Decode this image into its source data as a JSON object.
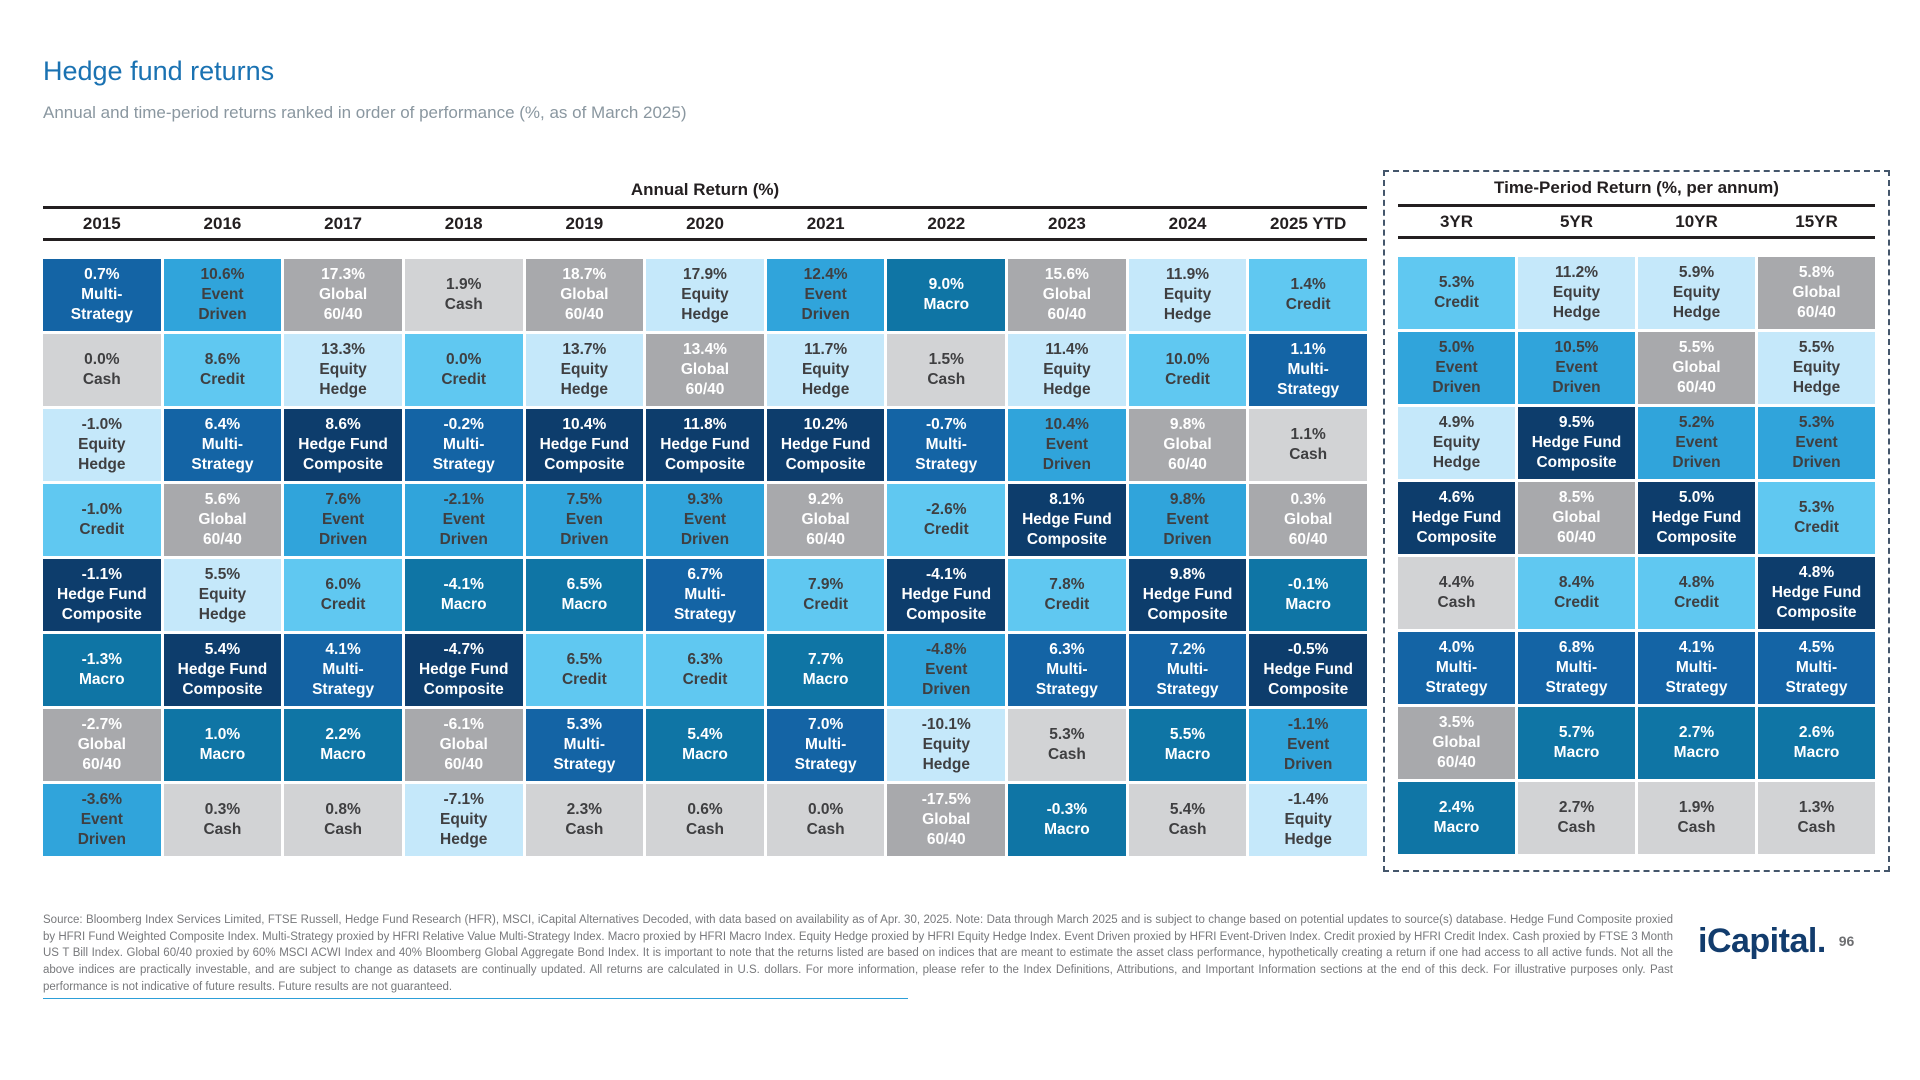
{
  "page": {
    "title": "Hedge fund returns",
    "subtitle": "Annual and time-period returns ranked in order of performance (%, as of March 2025)",
    "footer": "Source: Bloomberg Index Services Limited, FTSE Russell, Hedge Fund Research (HFR), MSCI, iCapital Alternatives Decoded, with data based on availability as of Apr. 30, 2025. Note: Data through March 2025 and is subject to change based on potential updates to source(s) database. Hedge Fund Composite proxied by HFRI Fund Weighted Composite Index. Multi-Strategy proxied by HFRI Relative Value Multi-Strategy Index. Macro proxied by HFRI Macro Index. Equity Hedge proxied by HFRI Equity Hedge Index. Event Driven proxied by HFRI Event-Driven Index. Credit proxied by HFRI Credit Index. Cash proxied by FTSE 3 Month US T Bill Index. Global 60/40 proxied by 60% MSCI ACWI Index and 40% Bloomberg Global Aggregate Bond Index. It is important to note that the returns listed are based on indices that are meant to estimate the asset class performance, hypothetically creating a return if one had access to all active funds. Not all the above indices are practically investable, and are subject to change as datasets are continually updated. All returns are calculated in U.S. dollars. For more information, please refer to the Index Definitions, Attributions, and Important Information sections at the end of this deck. For illustrative purposes only. Past performance is not indicative of future results. Future results are not guaranteed.",
    "logo_text": "iCapital",
    "logo_suffix": ".",
    "page_number": "96"
  },
  "legend": {
    "ms": {
      "name": "Multi-Strategy",
      "display": "Multi-\nStrategy",
      "bg": "#1464A5",
      "fg": "#FFFFFF"
    },
    "hfc": {
      "name": "Hedge Fund Composite",
      "display": "Hedge Fund\nComposite",
      "bg": "#0D3D6C",
      "fg": "#FFFFFF"
    },
    "macro": {
      "name": "Macro",
      "display": "Macro",
      "bg": "#0F75A5",
      "fg": "#FFFFFF"
    },
    "ed": {
      "name": "Event Driven",
      "display": "Event\nDriven",
      "bg": "#30A4DB",
      "fg": "#3F3F41"
    },
    "credit": {
      "name": "Credit",
      "display": "Credit",
      "bg": "#60C8F1",
      "fg": "#3F3F41"
    },
    "eh": {
      "name": "Equity Hedge",
      "display": "Equity\nHedge",
      "bg": "#C5E8FA",
      "fg": "#3F3F41"
    },
    "g6040": {
      "name": "Global 60/40",
      "display": "Global\n60/40",
      "bg": "#A8A9AC",
      "fg": "#FFFFFF"
    },
    "cash": {
      "name": "Cash",
      "display": "Cash",
      "bg": "#D2D3D5",
      "fg": "#3F3F41"
    }
  },
  "chart_data": {
    "type": "table",
    "title": "Hedge fund returns",
    "subtitle": "Annual and time-period returns ranked in order of performance (%, as of March 2025)",
    "sections": [
      {
        "header": "Annual Return (%)",
        "columns": [
          {
            "label": "2015",
            "cells": [
              [
                "0.7%",
                "ms"
              ],
              [
                "0.0%",
                "cash"
              ],
              [
                "-1.0%",
                "eh"
              ],
              [
                "-1.0%",
                "credit"
              ],
              [
                "-1.1%",
                "hfc"
              ],
              [
                "-1.3%",
                "macro"
              ],
              [
                "-2.7%",
                "g6040"
              ],
              [
                "-3.6%",
                "ed"
              ]
            ]
          },
          {
            "label": "2016",
            "cells": [
              [
                "10.6%",
                "ed"
              ],
              [
                "8.6%",
                "credit"
              ],
              [
                "6.4%",
                "ms"
              ],
              [
                "5.6%",
                "g6040"
              ],
              [
                "5.5%",
                "eh"
              ],
              [
                "5.4%",
                "hfc"
              ],
              [
                "1.0%",
                "macro"
              ],
              [
                "0.3%",
                "cash"
              ]
            ]
          },
          {
            "label": "2017",
            "cells": [
              [
                "17.3%",
                "g6040"
              ],
              [
                "13.3%",
                "eh"
              ],
              [
                "8.6%",
                "hfc"
              ],
              [
                "7.6%",
                "ed"
              ],
              [
                "6.0%",
                "credit"
              ],
              [
                "4.1%",
                "ms"
              ],
              [
                "2.2%",
                "macro"
              ],
              [
                "0.8%",
                "cash"
              ]
            ]
          },
          {
            "label": "2018",
            "cells": [
              [
                "1.9%",
                "cash"
              ],
              [
                "0.0%",
                "credit"
              ],
              [
                "-0.2%",
                "ms"
              ],
              [
                "-2.1%",
                "ed"
              ],
              [
                "-4.1%",
                "macro"
              ],
              [
                "-4.7%",
                "hfc"
              ],
              [
                "-6.1%",
                "g6040"
              ],
              [
                "-7.1%",
                "eh"
              ]
            ]
          },
          {
            "label": "2019",
            "cells": [
              [
                "18.7%",
                "g6040"
              ],
              [
                "13.7%",
                "eh"
              ],
              [
                "10.4%",
                "hfc"
              ],
              [
                "7.5%",
                "ed",
                "Even\nDriven"
              ],
              [
                "6.5%",
                "macro"
              ],
              [
                "6.5%",
                "credit"
              ],
              [
                "5.3%",
                "ms"
              ],
              [
                "2.3%",
                "cash"
              ]
            ]
          },
          {
            "label": "2020",
            "cells": [
              [
                "17.9%",
                "eh"
              ],
              [
                "13.4%",
                "g6040"
              ],
              [
                "11.8%",
                "hfc"
              ],
              [
                "9.3%",
                "ed"
              ],
              [
                "6.7%",
                "ms"
              ],
              [
                "6.3%",
                "credit"
              ],
              [
                "5.4%",
                "macro"
              ],
              [
                "0.6%",
                "cash"
              ]
            ]
          },
          {
            "label": "2021",
            "cells": [
              [
                "12.4%",
                "ed"
              ],
              [
                "11.7%",
                "eh"
              ],
              [
                "10.2%",
                "hfc"
              ],
              [
                "9.2%",
                "g6040"
              ],
              [
                "7.9%",
                "credit"
              ],
              [
                "7.7%",
                "macro"
              ],
              [
                "7.0%",
                "ms"
              ],
              [
                "0.0%",
                "cash"
              ]
            ]
          },
          {
            "label": "2022",
            "cells": [
              [
                "9.0%",
                "macro"
              ],
              [
                "1.5%",
                "cash"
              ],
              [
                "-0.7%",
                "ms"
              ],
              [
                "-2.6%",
                "credit"
              ],
              [
                "-4.1%",
                "hfc"
              ],
              [
                "-4.8%",
                "ed"
              ],
              [
                "-10.1%",
                "eh"
              ],
              [
                "-17.5%",
                "g6040"
              ]
            ]
          },
          {
            "label": "2023",
            "cells": [
              [
                "15.6%",
                "g6040"
              ],
              [
                "11.4%",
                "eh"
              ],
              [
                "10.4%",
                "ed"
              ],
              [
                "8.1%",
                "hfc"
              ],
              [
                "7.8%",
                "credit"
              ],
              [
                "6.3%",
                "ms"
              ],
              [
                "5.3%",
                "cash"
              ],
              [
                "-0.3%",
                "macro"
              ]
            ]
          },
          {
            "label": "2024",
            "cells": [
              [
                "11.9%",
                "eh"
              ],
              [
                "10.0%",
                "credit"
              ],
              [
                "9.8%",
                "g6040"
              ],
              [
                "9.8%",
                "ed"
              ],
              [
                "9.8%",
                "hfc"
              ],
              [
                "7.2%",
                "ms"
              ],
              [
                "5.5%",
                "macro"
              ],
              [
                "5.4%",
                "cash"
              ]
            ]
          },
          {
            "label": "2025 YTD",
            "cells": [
              [
                "1.4%",
                "credit"
              ],
              [
                "1.1%",
                "ms"
              ],
              [
                "1.1%",
                "cash"
              ],
              [
                "0.3%",
                "g6040"
              ],
              [
                "-0.1%",
                "macro"
              ],
              [
                "-0.5%",
                "hfc"
              ],
              [
                "-1.1%",
                "ed"
              ],
              [
                "-1.4%",
                "eh"
              ]
            ]
          }
        ]
      },
      {
        "header": "Time-Period Return (%, per annum)",
        "columns": [
          {
            "label": "3YR",
            "cells": [
              [
                "5.3%",
                "credit"
              ],
              [
                "5.0%",
                "ed"
              ],
              [
                "4.9%",
                "eh"
              ],
              [
                "4.6%",
                "hfc"
              ],
              [
                "4.4%",
                "cash"
              ],
              [
                "4.0%",
                "ms"
              ],
              [
                "3.5%",
                "g6040"
              ],
              [
                "2.4%",
                "macro"
              ]
            ]
          },
          {
            "label": "5YR",
            "cells": [
              [
                "11.2%",
                "eh"
              ],
              [
                "10.5%",
                "ed"
              ],
              [
                "9.5%",
                "hfc"
              ],
              [
                "8.5%",
                "g6040"
              ],
              [
                "8.4%",
                "credit"
              ],
              [
                "6.8%",
                "ms"
              ],
              [
                "5.7%",
                "macro"
              ],
              [
                "2.7%",
                "cash"
              ]
            ]
          },
          {
            "label": "10YR",
            "cells": [
              [
                "5.9%",
                "eh"
              ],
              [
                "5.5%",
                "g6040"
              ],
              [
                "5.2%",
                "ed"
              ],
              [
                "5.0%",
                "hfc"
              ],
              [
                "4.8%",
                "credit"
              ],
              [
                "4.1%",
                "ms"
              ],
              [
                "2.7%",
                "macro"
              ],
              [
                "1.9%",
                "cash"
              ]
            ]
          },
          {
            "label": "15YR",
            "cells": [
              [
                "5.8%",
                "g6040"
              ],
              [
                "5.5%",
                "eh"
              ],
              [
                "5.3%",
                "ed"
              ],
              [
                "5.3%",
                "credit"
              ],
              [
                "4.8%",
                "hfc"
              ],
              [
                "4.5%",
                "ms"
              ],
              [
                "2.6%",
                "macro"
              ],
              [
                "1.3%",
                "cash"
              ]
            ]
          }
        ]
      }
    ]
  }
}
